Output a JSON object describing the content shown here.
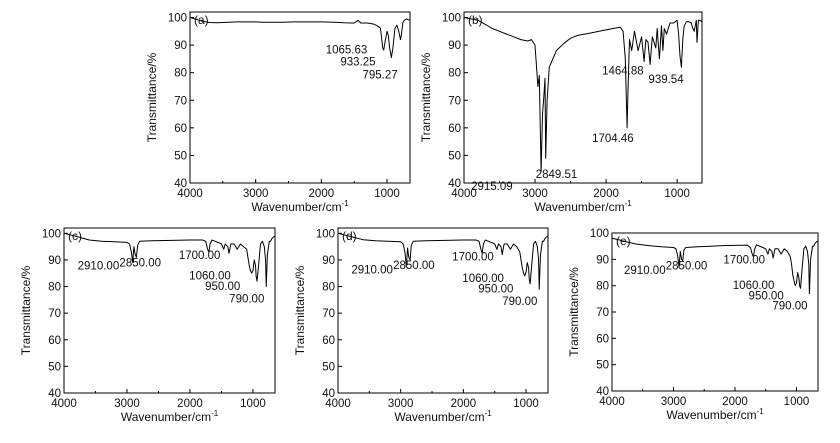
{
  "chart_data": [
    {
      "type": "line",
      "panel_label": "(a)",
      "xlabel": "Wavenumber/cm",
      "xlabel_sup": "-1",
      "ylabel": "Transmittance/%",
      "xlim": [
        4000,
        650
      ],
      "ylim": [
        40,
        102
      ],
      "xticks": [
        "4000",
        "3000",
        "2000",
        "1000"
      ],
      "yticks": [
        "40",
        "50",
        "60",
        "70",
        "80",
        "90",
        "100"
      ],
      "series": [
        {
          "x": [
            4000,
            3900,
            3800,
            3700,
            3600,
            3500,
            3400,
            3300,
            3200,
            3100,
            3000,
            2900,
            2800,
            2600,
            2400,
            2200,
            2000,
            1800,
            1650,
            1550,
            1500,
            1440,
            1400,
            1300,
            1200,
            1150,
            1100,
            1080,
            1065.63,
            1050,
            1030,
            1000,
            980,
            960,
            933.25,
            910,
            880,
            850,
            820,
            795.27,
            780,
            760,
            740,
            700,
            680,
            650
          ],
          "y": [
            100,
            99.3,
            98.6,
            98.2,
            98.1,
            98.2,
            98.3,
            98.4,
            98.4,
            98.4,
            98.4,
            98.3,
            98.3,
            98.3,
            98.4,
            98.4,
            98.4,
            98.3,
            98.1,
            98.0,
            98.0,
            99.0,
            98.0,
            98.0,
            97.6,
            97.0,
            96.2,
            92.0,
            89.0,
            88.2,
            91.0,
            95.0,
            93.5,
            89.0,
            85.5,
            89.0,
            96.0,
            97.2,
            95.0,
            92.0,
            94.0,
            98.0,
            99.0,
            99.5,
            99.2,
            99.0
          ]
        }
      ],
      "annotations": [
        {
          "text": "1065.63",
          "x": 1065.63,
          "y": 88
        },
        {
          "text": "933.25",
          "x": 933.25,
          "y": 85.5
        },
        {
          "text": "795.27",
          "x": 795.27,
          "y": 83
        }
      ]
    },
    {
      "type": "line",
      "panel_label": "(b)",
      "xlabel": "Wavenumber/cm",
      "xlabel_sup": "-1",
      "ylabel": "Transmittance/%",
      "xlim": [
        4000,
        650
      ],
      "ylim": [
        40,
        102
      ],
      "xticks": [
        "4000",
        "3000",
        "2000",
        "1000"
      ],
      "yticks": [
        "40",
        "50",
        "60",
        "70",
        "80",
        "90",
        "100"
      ],
      "series": [
        {
          "x": [
            4000,
            3800,
            3700,
            3600,
            3500,
            3400,
            3300,
            3200,
            3100,
            3050,
            3000,
            2960,
            2940,
            2915.09,
            2895,
            2880,
            2860,
            2849.51,
            2830,
            2800,
            2700,
            2600,
            2500,
            2400,
            2300,
            2200,
            2100,
            2000,
            1900,
            1800,
            1760,
            1730,
            1704.46,
            1690,
            1670,
            1640,
            1600,
            1550,
            1500,
            1464.88,
            1440,
            1410,
            1380,
            1350,
            1300,
            1280,
            1250,
            1220,
            1200,
            1180,
            1150,
            1100,
            1050,
            1000,
            980,
            960,
            939.54,
            920,
            900,
            870,
            840,
            800,
            780,
            760,
            730,
            720,
            700,
            680,
            650
          ],
          "y": [
            100,
            99.0,
            97.5,
            96.0,
            95.0,
            94.0,
            93.0,
            92.0,
            91.5,
            92.0,
            90.0,
            75.0,
            79.0,
            44.0,
            65.0,
            70.0,
            78.0,
            49.0,
            70.0,
            82.0,
            88.0,
            90.5,
            92.5,
            93.5,
            94.0,
            94.5,
            95.0,
            95.5,
            96.0,
            96.5,
            95.0,
            85.0,
            60.0,
            75.0,
            92.0,
            88.0,
            95.0,
            88.0,
            93.0,
            84.0,
            92.0,
            91.0,
            83.0,
            93.0,
            89.0,
            96.0,
            85.0,
            97.0,
            88.0,
            96.0,
            94.0,
            98.0,
            98.0,
            99.0,
            94.0,
            86.0,
            82.0,
            92.0,
            97.0,
            98.5,
            98.5,
            98.0,
            96.0,
            95.0,
            99.0,
            91.0,
            99.0,
            99.0,
            98.5
          ]
        }
      ],
      "annotations": [
        {
          "text": "2915.09",
          "x": 2915.09,
          "y": 44
        },
        {
          "text": "2849.51",
          "x": 2849.51,
          "y": 49
        },
        {
          "text": "1704.46",
          "x": 1704.46,
          "y": 60
        },
        {
          "text": "1464.88",
          "x": 1464.88,
          "y": 84
        },
        {
          "text": "939.54",
          "x": 939.54,
          "y": 82
        }
      ]
    },
    {
      "type": "line",
      "panel_label": "(c)",
      "xlabel": "Wavenumber/cm",
      "xlabel_sup": "-1",
      "ylabel": "Transmittance/%",
      "xlim": [
        4000,
        650
      ],
      "ylim": [
        40,
        102
      ],
      "xticks": [
        "4000",
        "3000",
        "2000",
        "1000"
      ],
      "yticks": [
        "40",
        "50",
        "60",
        "70",
        "80",
        "90",
        "100"
      ],
      "series": [
        {
          "x": [
            4000,
            3800,
            3600,
            3400,
            3200,
            3000,
            2960,
            2930,
            2910,
            2890,
            2870,
            2850,
            2830,
            2800,
            2600,
            2400,
            2200,
            2000,
            1800,
            1750,
            1720,
            1700,
            1680,
            1650,
            1600,
            1550,
            1500,
            1465,
            1440,
            1400,
            1380,
            1350,
            1300,
            1250,
            1200,
            1150,
            1100,
            1080,
            1060,
            1040,
            1020,
            1000,
            980,
            960,
            950,
            935,
            910,
            880,
            850,
            820,
            800,
            790,
            770,
            740,
            720,
            700,
            680,
            650
          ],
          "y": [
            100,
            98.8,
            97.5,
            97.0,
            96.8,
            96.6,
            96.0,
            93.0,
            89.0,
            95.0,
            92.0,
            91.0,
            95.5,
            97.0,
            97.2,
            97.3,
            97.4,
            97.5,
            97.5,
            97.0,
            94.0,
            93.0,
            96.0,
            97.5,
            97.0,
            96.5,
            96.0,
            94.0,
            96.0,
            95.0,
            92.5,
            96.0,
            96.0,
            94.0,
            96.0,
            95.0,
            94.0,
            91.0,
            88.0,
            86.0,
            85.0,
            86.0,
            90.0,
            88.0,
            84.0,
            82.0,
            88.0,
            96.0,
            97.0,
            95.0,
            90.0,
            80.0,
            92.0,
            97.0,
            97.0,
            98.0,
            98.5,
            99.0
          ]
        }
      ],
      "annotations": [
        {
          "text": "2910.00",
          "x": 2910,
          "y": 89
        },
        {
          "text": "2850.00",
          "x": 2850,
          "y": 91
        },
        {
          "text": "1700.00",
          "x": 1700,
          "y": 93
        },
        {
          "text": "1060.00",
          "x": 1060,
          "y": 88
        },
        {
          "text": "950.00",
          "x": 950,
          "y": 84
        },
        {
          "text": "790.00",
          "x": 790,
          "y": 80
        }
      ]
    },
    {
      "type": "line",
      "panel_label": "(d)",
      "xlabel": "Wavenumber/cm",
      "xlabel_sup": "-1",
      "ylabel": "Transmittance/%",
      "xlim": [
        4000,
        650
      ],
      "ylim": [
        40,
        102
      ],
      "xticks": [
        "4000",
        "3000",
        "2000",
        "1000"
      ],
      "yticks": [
        "40",
        "50",
        "60",
        "70",
        "80",
        "90",
        "100"
      ],
      "series": [
        {
          "x": [
            4000,
            3800,
            3600,
            3400,
            3200,
            3000,
            2960,
            2930,
            2910,
            2890,
            2870,
            2850,
            2830,
            2800,
            2600,
            2400,
            2200,
            2000,
            1800,
            1750,
            1720,
            1700,
            1680,
            1650,
            1600,
            1550,
            1500,
            1465,
            1440,
            1400,
            1380,
            1350,
            1300,
            1250,
            1200,
            1150,
            1100,
            1080,
            1060,
            1040,
            1020,
            1000,
            980,
            960,
            950,
            935,
            910,
            880,
            850,
            820,
            800,
            790,
            770,
            740,
            720,
            700,
            680,
            650
          ],
          "y": [
            100,
            98.8,
            97.6,
            97.2,
            97.0,
            96.8,
            96.0,
            92.5,
            87.5,
            94.5,
            91.0,
            90.0,
            95.5,
            97.0,
            97.2,
            97.3,
            97.4,
            97.5,
            97.5,
            97.0,
            94.0,
            92.5,
            96.0,
            97.5,
            97.0,
            96.5,
            96.0,
            94.0,
            96.0,
            95.0,
            92.0,
            96.0,
            96.0,
            94.0,
            96.0,
            95.0,
            93.0,
            90.0,
            87.0,
            85.0,
            84.0,
            85.5,
            89.0,
            87.0,
            83.0,
            81.0,
            88.0,
            96.0,
            97.0,
            95.0,
            90.0,
            79.0,
            92.0,
            97.0,
            97.0,
            98.0,
            98.5,
            99.0
          ]
        }
      ],
      "annotations": [
        {
          "text": "2910.00",
          "x": 2910,
          "y": 87.5
        },
        {
          "text": "2850.00",
          "x": 2850,
          "y": 90
        },
        {
          "text": "1700.00",
          "x": 1700,
          "y": 92.5
        },
        {
          "text": "1060.00",
          "x": 1060,
          "y": 87
        },
        {
          "text": "950.00",
          "x": 950,
          "y": 83
        },
        {
          "text": "790.00",
          "x": 790,
          "y": 79
        }
      ]
    },
    {
      "type": "line",
      "panel_label": "(e)",
      "xlabel": "Wavenumber/cm",
      "xlabel_sup": "-1",
      "ylabel": "Transmittance/%",
      "xlim": [
        4000,
        650
      ],
      "ylim": [
        40,
        100
      ],
      "xticks": [
        "4000",
        "3000",
        "2000",
        "1000"
      ],
      "yticks": [
        "40",
        "50",
        "60",
        "70",
        "80",
        "90",
        "100"
      ],
      "series": [
        {
          "x": [
            4000,
            3900,
            3800,
            3600,
            3400,
            3200,
            3000,
            2960,
            2930,
            2910,
            2890,
            2870,
            2850,
            2830,
            2800,
            2600,
            2400,
            2200,
            2000,
            1800,
            1750,
            1720,
            1700,
            1680,
            1650,
            1600,
            1550,
            1500,
            1465,
            1440,
            1400,
            1380,
            1350,
            1300,
            1250,
            1200,
            1150,
            1100,
            1080,
            1060,
            1040,
            1020,
            1000,
            980,
            960,
            950,
            935,
            910,
            880,
            850,
            820,
            800,
            790,
            770,
            740,
            720,
            700,
            680,
            650
          ],
          "y": [
            98.0,
            97.5,
            96.8,
            95.8,
            95.2,
            94.8,
            94.5,
            94.0,
            91.0,
            87.0,
            93.0,
            90.0,
            89.5,
            93.5,
            94.5,
            94.8,
            95.0,
            95.2,
            95.3,
            95.4,
            94.5,
            92.0,
            91.0,
            94.0,
            95.5,
            95.0,
            94.5,
            94.0,
            92.0,
            94.0,
            93.0,
            90.5,
            94.0,
            94.0,
            92.0,
            94.0,
            93.0,
            91.0,
            88.0,
            84.0,
            82.0,
            80.0,
            81.0,
            85.0,
            83.0,
            80.0,
            79.0,
            86.0,
            94.0,
            95.0,
            93.0,
            88.0,
            77.0,
            90.0,
            95.0,
            95.0,
            96.0,
            96.5,
            97.0
          ]
        }
      ],
      "annotations": [
        {
          "text": "2910.00",
          "x": 2910,
          "y": 87
        },
        {
          "text": "2850.00",
          "x": 2850,
          "y": 89.5
        },
        {
          "text": "1700.00",
          "x": 1700,
          "y": 91
        },
        {
          "text": "1060.00",
          "x": 1060,
          "y": 84
        },
        {
          "text": "950.00",
          "x": 950,
          "y": 80
        },
        {
          "text": "790.00",
          "x": 790,
          "y": 77
        }
      ]
    }
  ]
}
